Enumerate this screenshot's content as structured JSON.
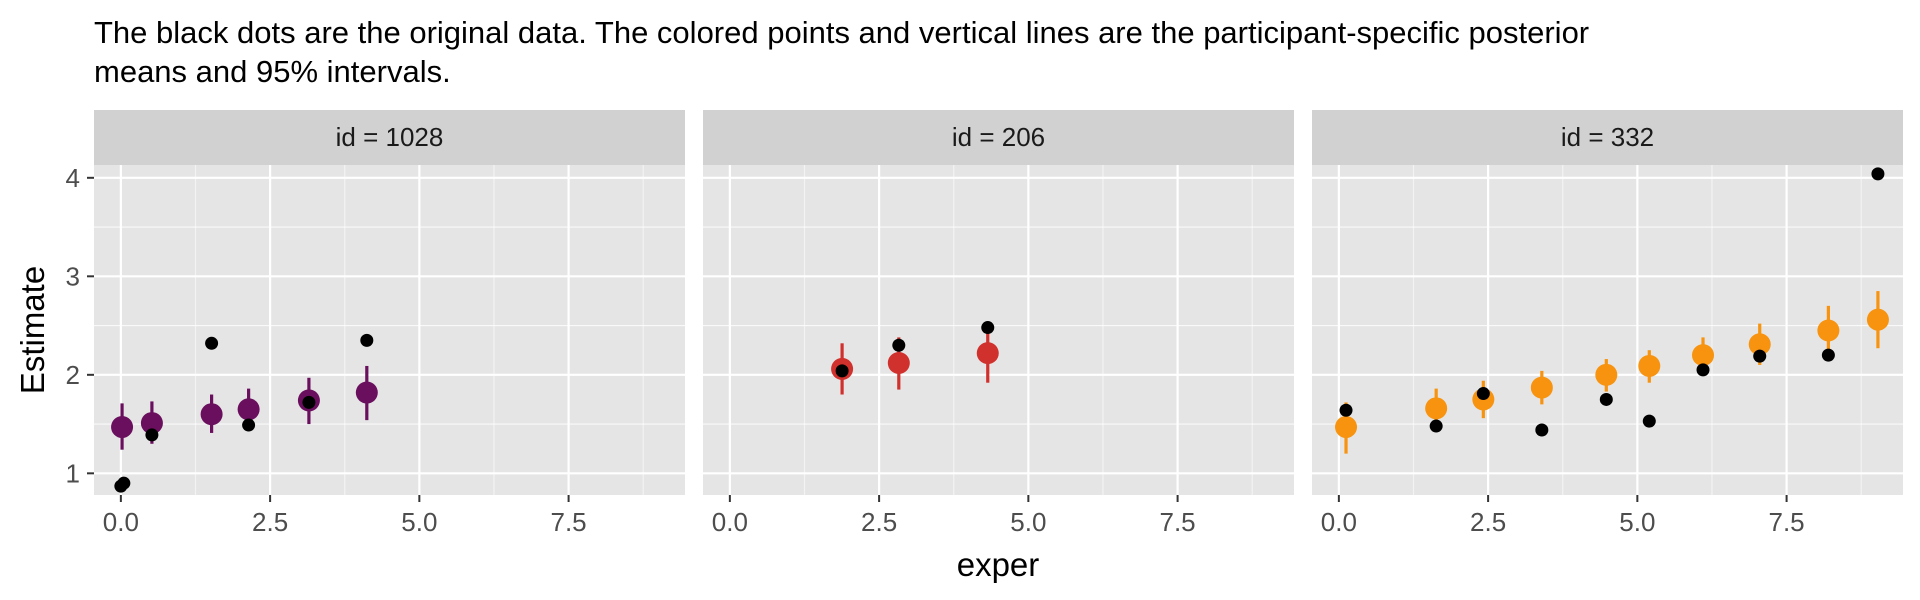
{
  "chart_data": {
    "type": "scatter",
    "subtitle_lines": [
      "The black dots are the original data. The colored points and vertical lines are the participant-specific posterior",
      "means and 95% intervals."
    ],
    "xlabel": "exper",
    "ylabel": "Estimate",
    "xlim": [
      -0.45,
      9.45
    ],
    "ylim": [
      0.78,
      4.13
    ],
    "x_ticks": [
      0,
      2.5,
      5,
      7.5
    ],
    "x_tick_labels": [
      "0.0",
      "2.5",
      "5.0",
      "7.5"
    ],
    "y_ticks": [
      1,
      2,
      3,
      4
    ],
    "y_tick_labels": [
      "1",
      "2",
      "3",
      "4"
    ],
    "grid": true,
    "panel_background": "#e5e5e5",
    "strip_background": "#d1d1d1",
    "grid_color": "#ffffff",
    "data_point_color": "#000000",
    "facets": [
      {
        "strip": "id = 1028",
        "color": "#6a0f5e",
        "observed": [
          {
            "x": 0.0,
            "y": 0.87
          },
          {
            "x": 0.05,
            "y": 0.9
          },
          {
            "x": 0.52,
            "y": 1.39
          },
          {
            "x": 1.52,
            "y": 2.32
          },
          {
            "x": 2.14,
            "y": 1.49
          },
          {
            "x": 3.15,
            "y": 1.72
          },
          {
            "x": 4.12,
            "y": 2.35
          }
        ],
        "posterior": [
          {
            "x": 0.02,
            "mean": 1.47,
            "lower": 1.24,
            "upper": 1.71
          },
          {
            "x": 0.52,
            "mean": 1.51,
            "lower": 1.3,
            "upper": 1.73
          },
          {
            "x": 1.52,
            "mean": 1.6,
            "lower": 1.41,
            "upper": 1.8
          },
          {
            "x": 2.14,
            "mean": 1.65,
            "lower": 1.46,
            "upper": 1.86
          },
          {
            "x": 3.15,
            "mean": 1.74,
            "lower": 1.5,
            "upper": 1.97
          },
          {
            "x": 4.12,
            "mean": 1.82,
            "lower": 1.54,
            "upper": 2.09
          }
        ]
      },
      {
        "strip": "id = 206",
        "color": "#d0312d",
        "observed": [
          {
            "x": 1.88,
            "y": 2.04
          },
          {
            "x": 2.83,
            "y": 2.3
          },
          {
            "x": 4.32,
            "y": 2.48
          }
        ],
        "posterior": [
          {
            "x": 1.88,
            "mean": 2.06,
            "lower": 1.8,
            "upper": 2.32
          },
          {
            "x": 2.83,
            "mean": 2.12,
            "lower": 1.85,
            "upper": 2.38
          },
          {
            "x": 4.32,
            "mean": 2.22,
            "lower": 1.92,
            "upper": 2.5
          }
        ]
      },
      {
        "strip": "id = 332",
        "color": "#f7930f",
        "observed": [
          {
            "x": 0.12,
            "y": 1.64
          },
          {
            "x": 1.63,
            "y": 1.48
          },
          {
            "x": 2.42,
            "y": 1.81
          },
          {
            "x": 3.4,
            "y": 1.44
          },
          {
            "x": 4.48,
            "y": 1.75
          },
          {
            "x": 5.2,
            "y": 1.53
          },
          {
            "x": 6.1,
            "y": 2.05
          },
          {
            "x": 7.05,
            "y": 2.19
          },
          {
            "x": 8.2,
            "y": 2.2
          },
          {
            "x": 9.03,
            "y": 4.04
          }
        ],
        "posterior": [
          {
            "x": 0.12,
            "mean": 1.47,
            "lower": 1.2,
            "upper": 1.72
          },
          {
            "x": 1.63,
            "mean": 1.66,
            "lower": 1.45,
            "upper": 1.86
          },
          {
            "x": 2.42,
            "mean": 1.75,
            "lower": 1.56,
            "upper": 1.94
          },
          {
            "x": 3.4,
            "mean": 1.87,
            "lower": 1.7,
            "upper": 2.04
          },
          {
            "x": 4.48,
            "mean": 2.0,
            "lower": 1.83,
            "upper": 2.16
          },
          {
            "x": 5.2,
            "mean": 2.09,
            "lower": 1.92,
            "upper": 2.25
          },
          {
            "x": 6.1,
            "mean": 2.2,
            "lower": 2.02,
            "upper": 2.38
          },
          {
            "x": 7.05,
            "mean": 2.31,
            "lower": 2.1,
            "upper": 2.52
          },
          {
            "x": 8.2,
            "mean": 2.45,
            "lower": 2.2,
            "upper": 2.7
          },
          {
            "x": 9.03,
            "mean": 2.56,
            "lower": 2.27,
            "upper": 2.85
          }
        ]
      }
    ]
  }
}
